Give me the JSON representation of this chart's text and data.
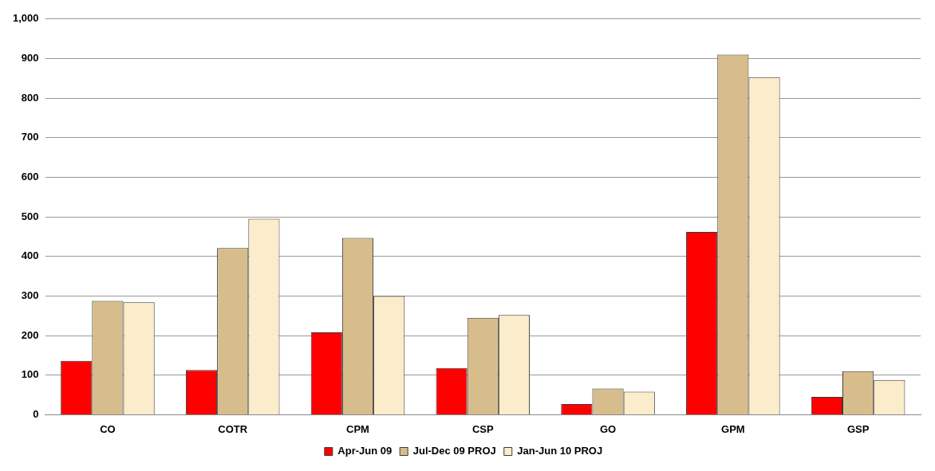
{
  "chart_data": {
    "type": "bar",
    "categories": [
      "CO",
      "COTR",
      "CPM",
      "CSP",
      "GO",
      "GPM",
      "GSP"
    ],
    "series": [
      {
        "name": "Apr-Jun 09",
        "color": "#ff0000",
        "values": [
          136,
          113,
          208,
          118,
          27,
          462,
          45
        ]
      },
      {
        "name": "Jul-Dec 09 PROJ",
        "color": "#d8bd8c",
        "values": [
          288,
          421,
          447,
          245,
          66,
          910,
          110
        ]
      },
      {
        "name": "Jan-Jun 10 PROJ",
        "color": "#fbeccb",
        "values": [
          284,
          495,
          300,
          252,
          58,
          853,
          88
        ]
      }
    ],
    "ylim": [
      0,
      1000
    ],
    "yticks": [
      0,
      100,
      200,
      300,
      400,
      500,
      600,
      700,
      800,
      900,
      {
        "value": 1000,
        "label": "1,000"
      }
    ],
    "grid": "y",
    "legend": "bottom"
  }
}
